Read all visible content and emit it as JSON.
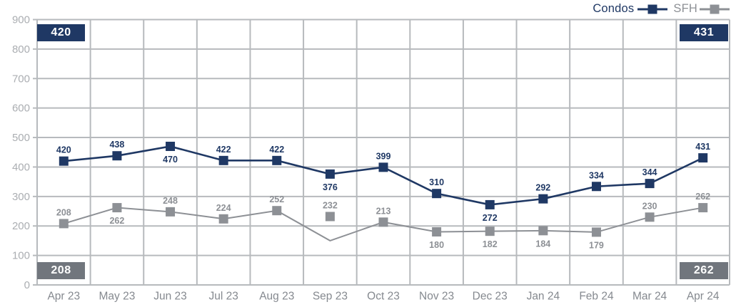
{
  "colors": {
    "condos": "#1f3864",
    "sfh": "#8d9095",
    "badge_gray": "#71767d",
    "grid": "#b7babd",
    "ytick_text": "#abaeb2",
    "xtick_text": "#85898f"
  },
  "legend": {
    "items": [
      {
        "label": "Condos"
      },
      {
        "label": "SFH"
      }
    ]
  },
  "badges": {
    "top_left": "420",
    "top_right": "431",
    "bottom_left": "208",
    "bottom_right": "262"
  },
  "chart_data": {
    "type": "line",
    "categories": [
      "Apr 23",
      "May 23",
      "Jun 23",
      "Jul 23",
      "Aug 23",
      "Sep 23",
      "Oct 23",
      "Nov 23",
      "Dec 23",
      "Jan 24",
      "Feb 24",
      "Mar 24",
      "Apr 24"
    ],
    "series": [
      {
        "name": "Condos",
        "color_key": "condos",
        "values": [
          420,
          438,
          470,
          422,
          422,
          376,
          399,
          310,
          272,
          292,
          334,
          344,
          431
        ],
        "label_positions": [
          "above",
          "above",
          "below",
          "above",
          "above",
          "below",
          "above",
          "above",
          "below",
          "above",
          "above",
          "above",
          "above"
        ]
      },
      {
        "name": "SFH",
        "color_key": "sfh",
        "values": [
          208,
          262,
          248,
          224,
          252,
          232,
          213,
          180,
          182,
          184,
          179,
          230,
          262
        ],
        "label_positions": [
          "above",
          "below",
          "above",
          "above",
          "above",
          "above",
          "above",
          "below",
          "below",
          "below",
          "below",
          "above",
          "above"
        ],
        "line_y_overrides": {
          "5": 150
        }
      }
    ],
    "ylim": [
      0,
      900
    ],
    "yticks": [
      0,
      100,
      200,
      300,
      400,
      500,
      600,
      700,
      800,
      900
    ],
    "grid": true,
    "legend_position": "top-right"
  }
}
